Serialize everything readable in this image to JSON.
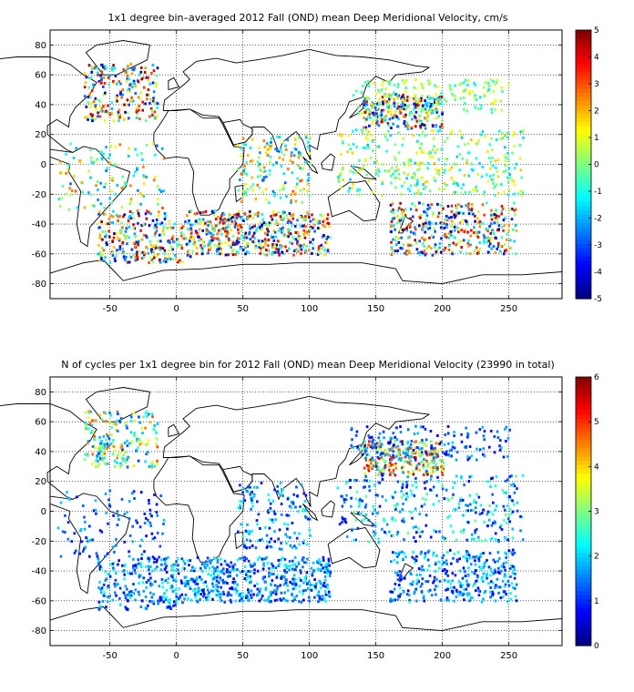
{
  "chart_data": [
    {
      "type": "heatmap",
      "title": "1x1 degree bin–averaged 2012 Fall (OND) mean Deep Meridional Velocity, cm/s",
      "xlabel": "",
      "ylabel": "",
      "xlim": [
        -95,
        290
      ],
      "ylim": [
        -90,
        90
      ],
      "xticks": [
        -50,
        0,
        50,
        100,
        150,
        200,
        250
      ],
      "yticks": [
        80,
        60,
        40,
        20,
        0,
        -20,
        -40,
        -60,
        -80
      ],
      "grid": true,
      "colorbar": {
        "min": -5,
        "max": 5,
        "ticks": [
          5,
          4,
          3,
          2,
          1,
          0,
          -1,
          -2,
          -3,
          -4,
          -5
        ],
        "colormap": "jet"
      },
      "regions": [
        {
          "lon": [
            -70,
            -15
          ],
          "lat": [
            30,
            68
          ],
          "count": 220,
          "vmin": -5,
          "vmax": 5
        },
        {
          "lon": [
            -60,
            10
          ],
          "lat": [
            -65,
            -30
          ],
          "count": 280,
          "vmin": -5,
          "vmax": 5
        },
        {
          "lon": [
            10,
            115
          ],
          "lat": [
            -60,
            -30
          ],
          "count": 480,
          "vmin": -5,
          "vmax": 5
        },
        {
          "lon": [
            45,
            100
          ],
          "lat": [
            -25,
            20
          ],
          "count": 160,
          "vmin": -3,
          "vmax": 3
        },
        {
          "lon": [
            140,
            200
          ],
          "lat": [
            25,
            48
          ],
          "count": 260,
          "vmin": -5,
          "vmax": 5
        },
        {
          "lon": [
            120,
            260
          ],
          "lat": [
            -20,
            25
          ],
          "count": 340,
          "vmin": -2,
          "vmax": 2
        },
        {
          "lon": [
            160,
            255
          ],
          "lat": [
            -60,
            -25
          ],
          "count": 360,
          "vmin": -5,
          "vmax": 5
        },
        {
          "lon": [
            130,
            250
          ],
          "lat": [
            35,
            58
          ],
          "count": 150,
          "vmin": -1.5,
          "vmax": 1.5
        },
        {
          "lon": [
            -90,
            -10
          ],
          "lat": [
            -30,
            15
          ],
          "count": 120,
          "vmin": -3,
          "vmax": 3
        }
      ]
    },
    {
      "type": "heatmap",
      "title": "N of cycles per 1x1 degree bin for 2012 Fall (OND) mean Deep Meridional Velocity (23990 in total)",
      "xlabel": "",
      "ylabel": "",
      "xlim": [
        -95,
        290
      ],
      "ylim": [
        -90,
        90
      ],
      "xticks": [
        -50,
        0,
        50,
        100,
        150,
        200,
        250
      ],
      "yticks": [
        80,
        60,
        40,
        20,
        0,
        -20,
        -40,
        -60,
        -80
      ],
      "grid": true,
      "colorbar": {
        "min": 0,
        "max": 6,
        "ticks": [
          6,
          5,
          4,
          3,
          2,
          1,
          0
        ],
        "colormap": "jet"
      },
      "total_cycles": 23990,
      "regions": [
        {
          "lon": [
            -70,
            -15
          ],
          "lat": [
            30,
            68
          ],
          "count": 200,
          "vmin": 1,
          "vmax": 5
        },
        {
          "lon": [
            -60,
            10
          ],
          "lat": [
            -65,
            -30
          ],
          "count": 260,
          "vmin": 0.5,
          "vmax": 2.5
        },
        {
          "lon": [
            10,
            115
          ],
          "lat": [
            -60,
            -30
          ],
          "count": 460,
          "vmin": 0.5,
          "vmax": 2.5
        },
        {
          "lon": [
            45,
            100
          ],
          "lat": [
            -25,
            20
          ],
          "count": 150,
          "vmin": 0.5,
          "vmax": 2.5
        },
        {
          "lon": [
            140,
            200
          ],
          "lat": [
            25,
            48
          ],
          "count": 260,
          "vmin": 1,
          "vmax": 6
        },
        {
          "lon": [
            120,
            260
          ],
          "lat": [
            -20,
            25
          ],
          "count": 320,
          "vmin": 0.5,
          "vmax": 3
        },
        {
          "lon": [
            160,
            255
          ],
          "lat": [
            -60,
            -25
          ],
          "count": 340,
          "vmin": 0.5,
          "vmax": 2.5
        },
        {
          "lon": [
            130,
            250
          ],
          "lat": [
            35,
            58
          ],
          "count": 140,
          "vmin": 0.5,
          "vmax": 2
        },
        {
          "lon": [
            -90,
            -10
          ],
          "lat": [
            -30,
            15
          ],
          "count": 110,
          "vmin": 0.5,
          "vmax": 2
        }
      ]
    }
  ]
}
